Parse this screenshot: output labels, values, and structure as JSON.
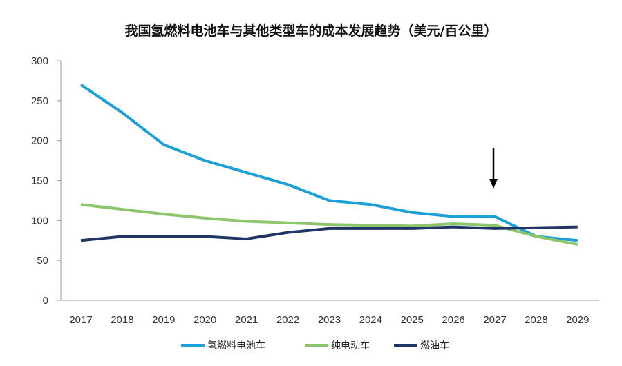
{
  "chart_data": {
    "type": "line",
    "title": "我国氢燃料电池车与其他类型车的成本发展趋势（美元/百公里）",
    "xlabel": "",
    "ylabel": "",
    "categories": [
      "2017",
      "2018",
      "2019",
      "2020",
      "2021",
      "2022",
      "2023",
      "2024",
      "2025",
      "2026",
      "2027",
      "2028",
      "2029"
    ],
    "ylim": [
      0,
      300
    ],
    "yticks": [
      0,
      50,
      100,
      150,
      200,
      250,
      300
    ],
    "grid": false,
    "legend_position": "bottom",
    "annotation": {
      "type": "arrow",
      "points_to": "2027"
    },
    "series": [
      {
        "name": "氢燃料电池车",
        "color": "#1ba0d8",
        "values": [
          270,
          235,
          195,
          175,
          160,
          145,
          125,
          120,
          110,
          105,
          105,
          80,
          75
        ]
      },
      {
        "name": "纯电动车",
        "color": "#8cc56b",
        "values": [
          120,
          114,
          108,
          103,
          99,
          97,
          95,
          94,
          93,
          96,
          94,
          80,
          70
        ]
      },
      {
        "name": "燃油车",
        "color": "#1f3566",
        "values": [
          75,
          80,
          80,
          80,
          77,
          85,
          90,
          90,
          90,
          92,
          90,
          91,
          92
        ]
      }
    ]
  }
}
